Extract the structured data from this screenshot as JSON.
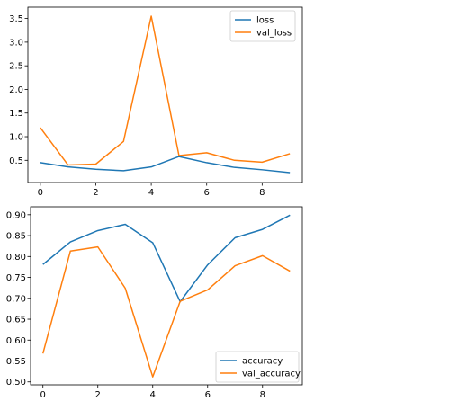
{
  "colors": {
    "series1": "#1f77b4",
    "series2": "#ff7f0e"
  },
  "chart_data": [
    {
      "type": "line",
      "x": [
        0,
        1,
        2,
        3,
        4,
        5,
        6,
        7,
        8,
        9
      ],
      "series": [
        {
          "name": "loss",
          "values": [
            0.45,
            0.36,
            0.31,
            0.28,
            0.36,
            0.58,
            0.45,
            0.35,
            0.3,
            0.24
          ]
        },
        {
          "name": "val_loss",
          "values": [
            1.19,
            0.4,
            0.42,
            0.9,
            3.55,
            0.6,
            0.66,
            0.5,
            0.46,
            0.64
          ]
        }
      ],
      "xlim": [
        -0.45,
        9.45
      ],
      "ylim": [
        0.03,
        3.74
      ],
      "xticks": [
        0,
        2,
        4,
        6,
        8
      ],
      "yticks": [
        0.5,
        1.0,
        1.5,
        2.0,
        2.5,
        3.0,
        3.5
      ],
      "ytick_labels": [
        "0.5",
        "1.0",
        "1.5",
        "2.0",
        "2.5",
        "3.0",
        "3.5"
      ],
      "legend": "top-right",
      "grid": false
    },
    {
      "type": "line",
      "x": [
        0,
        1,
        2,
        3,
        4,
        5,
        6,
        7,
        8,
        9
      ],
      "series": [
        {
          "name": "accuracy",
          "values": [
            0.781,
            0.835,
            0.862,
            0.877,
            0.833,
            0.692,
            0.78,
            0.845,
            0.865,
            0.899
          ]
        },
        {
          "name": "val_accuracy",
          "values": [
            0.568,
            0.813,
            0.823,
            0.724,
            0.512,
            0.693,
            0.72,
            0.778,
            0.802,
            0.765
          ]
        }
      ],
      "xlim": [
        -0.45,
        9.45
      ],
      "ylim": [
        0.493,
        0.919
      ],
      "xticks": [
        0,
        2,
        4,
        6,
        8
      ],
      "yticks": [
        0.5,
        0.55,
        0.6,
        0.65,
        0.7,
        0.75,
        0.8,
        0.85,
        0.9
      ],
      "ytick_labels": [
        "0.50",
        "0.55",
        "0.60",
        "0.65",
        "0.70",
        "0.75",
        "0.80",
        "0.85",
        "0.90"
      ],
      "legend": "bottom-right",
      "grid": false
    }
  ]
}
